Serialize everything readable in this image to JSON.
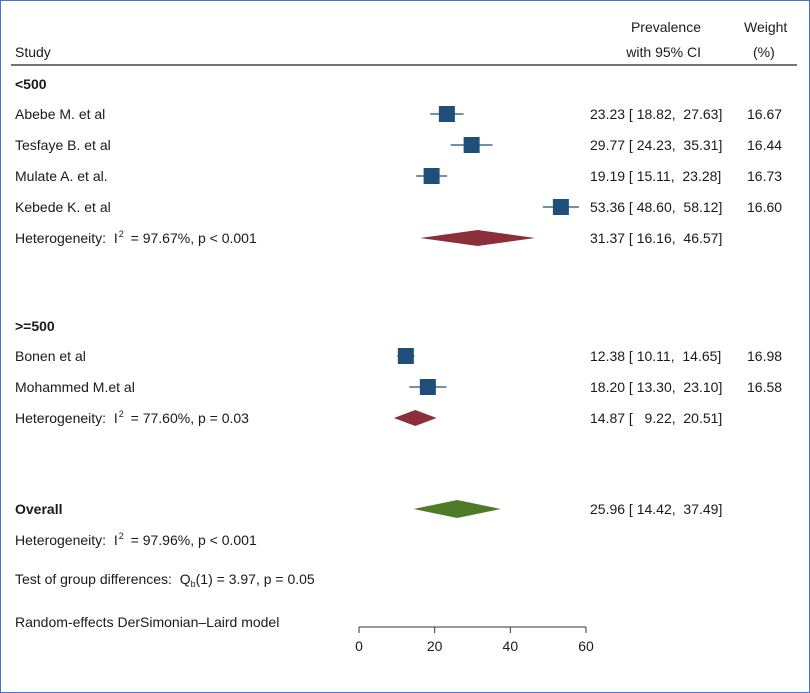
{
  "chart_data": {
    "type": "forest",
    "header": {
      "study": "Study",
      "prevalence_line1": "Prevalence",
      "prevalence_line2": "with 95% CI",
      "weight_line1": "Weight",
      "weight_line2": "(%)"
    },
    "xaxis": {
      "ticks": [
        0,
        20,
        40,
        60
      ],
      "xlim": [
        0,
        60
      ]
    },
    "groups": [
      {
        "name": "<500",
        "studies": [
          {
            "label": "Abebe M. et al",
            "estimate": 23.23,
            "ci_text": "23.23 [ 18.82,  27.63]",
            "lower": 18.82,
            "upper": 27.63,
            "weight": "16.67"
          },
          {
            "label": "Tesfaye B. et al",
            "estimate": 29.77,
            "ci_text": "29.77 [ 24.23,  35.31]",
            "lower": 24.23,
            "upper": 35.31,
            "weight": "16.44"
          },
          {
            "label": "Mulate A. et al.",
            "estimate": 19.19,
            "ci_text": "19.19 [ 15.11,  23.28]",
            "lower": 15.11,
            "upper": 23.28,
            "weight": "16.73"
          },
          {
            "label": "Kebede K. et al",
            "estimate": 53.36,
            "ci_text": "53.36 [ 48.60,  58.12]",
            "lower": 48.6,
            "upper": 58.12,
            "weight": "16.60"
          }
        ],
        "heterogeneity": {
          "prefix": "Heterogeneity:  I",
          "sup": "2",
          "suffix": " = 97.67%, p < 0.001"
        },
        "pooled": {
          "estimate": 31.37,
          "lower": 16.16,
          "upper": 46.57,
          "ci_text": "31.37 [ 16.16,  46.57]"
        }
      },
      {
        "name": ">=500",
        "studies": [
          {
            "label": "Bonen et al",
            "estimate": 12.38,
            "ci_text": "12.38 [ 10.11,  14.65]",
            "lower": 10.11,
            "upper": 14.65,
            "weight": "16.98"
          },
          {
            "label": "Mohammed M.et al",
            "estimate": 18.2,
            "ci_text": "18.20 [ 13.30,  23.10]",
            "lower": 13.3,
            "upper": 23.1,
            "weight": "16.58"
          }
        ],
        "heterogeneity": {
          "prefix": "Heterogeneity:  I",
          "sup": "2",
          "suffix": " = 77.60%, p = 0.03"
        },
        "pooled": {
          "estimate": 14.87,
          "lower": 9.22,
          "upper": 20.51,
          "ci_text": "14.87 [   9.22,  20.51]"
        }
      }
    ],
    "overall": {
      "label": "Overall",
      "estimate": 25.96,
      "lower": 14.42,
      "upper": 37.49,
      "ci_text": "25.96 [ 14.42,  37.49]",
      "heterogeneity": {
        "prefix": "Heterogeneity:  I",
        "sup": "2",
        "suffix": " = 97.96%, p < 0.001"
      }
    },
    "group_test": {
      "prefix": "Test of group differences:  Q",
      "sub": "b",
      "suffix": "(1) = 3.97, p = 0.05"
    },
    "model_note": "Random-effects DerSimonian–Laird model",
    "colors": {
      "square": "#1f4e79",
      "subgroup_diamond": "#8b2f3a",
      "overall_diamond": "#4f7a28",
      "frame": "#4a72c4"
    }
  }
}
